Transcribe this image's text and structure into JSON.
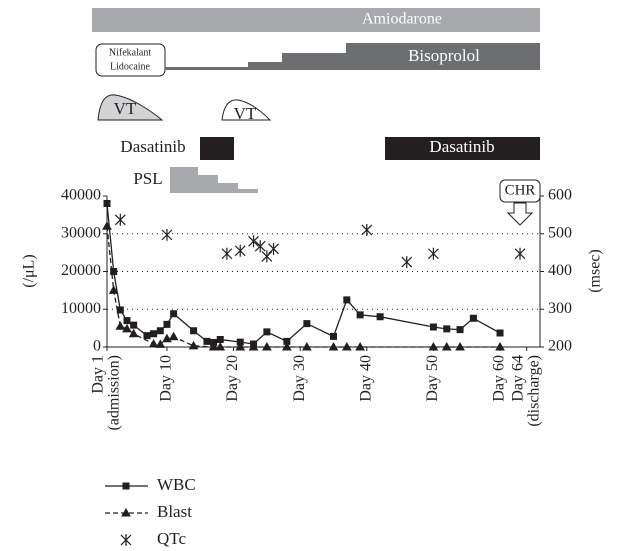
{
  "chart_data": {
    "type": "line",
    "annotations": [
      "Amiodarone",
      "Nifekalant",
      "Lidocaine",
      "Bisoprolol",
      "VT",
      "VT",
      "Dasatinib",
      "Dasatinib",
      "PSL",
      "CHR"
    ],
    "ylabel": "(/μL)",
    "y2label": "(msec)",
    "xlim": [
      1,
      66
    ],
    "xticks": [
      {
        "value": 1,
        "label": [
          "Day 1",
          "(admission)"
        ]
      },
      {
        "value": 10,
        "label": [
          "Day 10"
        ]
      },
      {
        "value": 20,
        "label": [
          "Day 20"
        ]
      },
      {
        "value": 30,
        "label": [
          "Day 30"
        ]
      },
      {
        "value": 40,
        "label": [
          "Day 40"
        ]
      },
      {
        "value": 50,
        "label": [
          "Day 50"
        ]
      },
      {
        "value": 60,
        "label": [
          "Day 60"
        ]
      },
      {
        "value": 64,
        "label": [
          "Day 64",
          "(discharge)"
        ]
      }
    ],
    "ylim": [
      0,
      40000
    ],
    "yticks": [
      0,
      10000,
      20000,
      30000,
      40000
    ],
    "y2lim": [
      200,
      600
    ],
    "y2ticks": [
      200,
      300,
      400,
      500,
      600
    ],
    "grid": true,
    "series": [
      {
        "name": "WBC",
        "color": "#231f20",
        "marker": "square",
        "style": "solid",
        "x": [
          1,
          2,
          3,
          4,
          5,
          7,
          8,
          9,
          10,
          11,
          14,
          16,
          17,
          18,
          21,
          23,
          25,
          28,
          31,
          35,
          37,
          39,
          42,
          50,
          52,
          54,
          56,
          60
        ],
        "values": [
          38000,
          20000,
          9800,
          7000,
          5800,
          3000,
          3500,
          4300,
          6000,
          8800,
          4300,
          1500,
          1200,
          2000,
          1300,
          800,
          4000,
          1500,
          6200,
          2800,
          12500,
          8500,
          8000,
          5300,
          4800,
          4600,
          7600,
          3700
        ]
      },
      {
        "name": "Blast",
        "color": "#231f20",
        "marker": "triangle",
        "style": "dashed",
        "x": [
          1,
          2,
          3,
          4,
          5,
          8,
          9,
          10,
          11,
          14,
          17,
          18,
          21,
          23,
          25,
          28,
          31,
          35,
          37,
          39,
          50,
          52,
          54,
          60
        ],
        "values": [
          32000,
          15000,
          5500,
          4800,
          3500,
          800,
          700,
          2200,
          2700,
          300,
          0,
          0,
          0,
          0,
          0,
          0,
          0,
          0,
          0,
          0,
          0,
          0,
          0,
          0
        ]
      },
      {
        "name": "QTc",
        "color": "#231f20",
        "marker": "asterisk",
        "style": "markers",
        "axis": "y2",
        "x": [
          3,
          10,
          19,
          21,
          23,
          24,
          25,
          26,
          40,
          46,
          50,
          63
        ],
        "values": [
          537,
          497,
          447,
          455,
          480,
          467,
          440,
          460,
          510,
          425,
          447,
          447
        ]
      }
    ]
  }
}
